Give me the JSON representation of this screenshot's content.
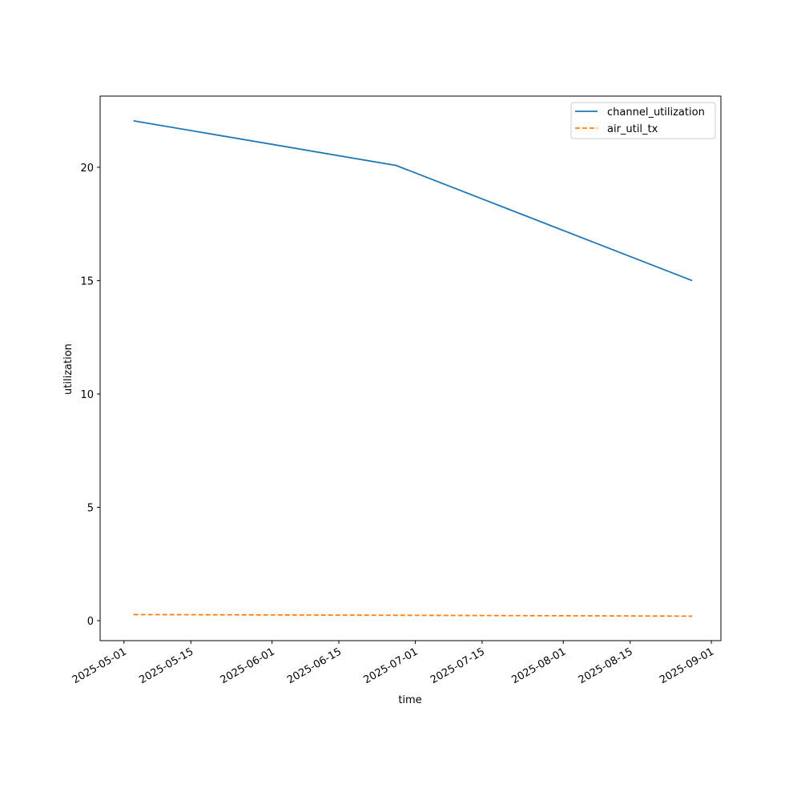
{
  "chart_data": {
    "type": "line",
    "x_label": "time",
    "y_label": "utilization",
    "x": [
      "2025-05-03",
      "2025-06-27",
      "2025-08-28"
    ],
    "series": [
      {
        "name": "channel_utilization",
        "color": "#1f77b4",
        "dash": "solid",
        "values": [
          22.05,
          20.08,
          15.0
        ]
      },
      {
        "name": "air_util_tx",
        "color": "#ff7f0e",
        "dash": "dashed",
        "values": [
          0.27,
          0.24,
          0.2
        ]
      }
    ],
    "xlim": [
      "2025-04-26",
      "2025-09-03"
    ],
    "xticks": [
      "2025-05-01",
      "2025-05-15",
      "2025-06-01",
      "2025-06-15",
      "2025-07-01",
      "2025-07-15",
      "2025-08-01",
      "2025-08-15",
      "2025-09-01"
    ],
    "ylim": [
      -0.88,
      23.14
    ],
    "yticks": [
      0,
      5,
      10,
      15,
      20
    ],
    "grid": false,
    "legend": "upper right"
  }
}
